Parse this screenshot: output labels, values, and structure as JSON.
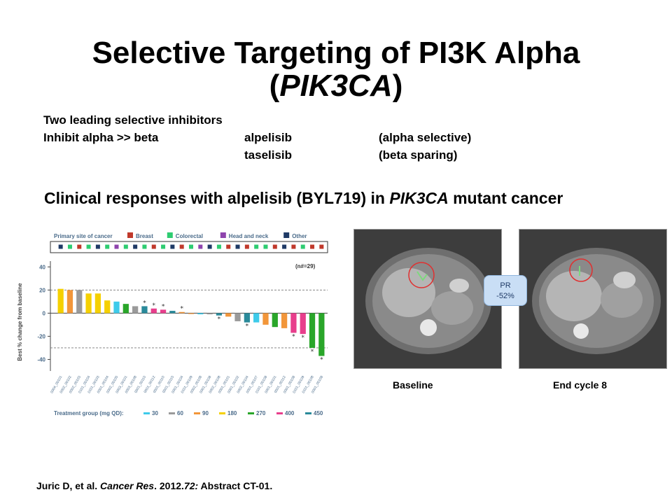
{
  "slide": {
    "title_line1": "Selective Targeting of PI3K Alpha",
    "title_line2_open": "(",
    "title_line2_italic": "PIK3CA",
    "title_line2_close": ")",
    "intro_line": "Two leading selective inhibitors",
    "inhibit_label": "Inhibit alpha >> beta",
    "drugs": [
      {
        "name": "alpelisib",
        "note": "(alpha selective)"
      },
      {
        "name": "taselisib",
        "note": "(beta sparing)"
      }
    ],
    "headline_prefix": "Clinical responses with alpelisib (BYL719) in ",
    "headline_italic": "PIK3CA",
    "headline_suffix": " mutant cancer",
    "ct_captions": {
      "baseline": "Baseline",
      "end": "End cycle 8"
    },
    "pr_badge": {
      "line1": "PR",
      "line2": "-52%"
    },
    "citation": {
      "authors": "Juric D, et al. ",
      "journal": "Cancer Res",
      "rest1": ". 2012.",
      "volume": "72:",
      "rest2": " Abstract CT-01."
    }
  },
  "chart_data": {
    "type": "bar",
    "ylabel": "Best % change from baseline",
    "ylim": [
      -50,
      45
    ],
    "yticks": [
      40,
      20,
      0,
      -20,
      -40
    ],
    "n_label": "(n#=29)",
    "primary_site_legend": {
      "label": "Primary site of cancer",
      "items": [
        {
          "name": "Breast",
          "color": "#c0392b"
        },
        {
          "name": "Colorectal",
          "color": "#2ecc71"
        },
        {
          "name": "Head and neck",
          "color": "#8e44ad"
        },
        {
          "name": "Other",
          "color": "#1f3a66"
        }
      ]
    },
    "treatment_legend": {
      "label": "Treatment group (mg QD):",
      "items": [
        {
          "dose": "30",
          "color": "#3ecbea"
        },
        {
          "dose": "60",
          "color": "#9a9a9a"
        },
        {
          "dose": "90",
          "color": "#f2963a"
        },
        {
          "dose": "180",
          "color": "#f5d000"
        },
        {
          "dose": "270",
          "color": "#2aa62a"
        },
        {
          "dose": "400",
          "color": "#e83e8c"
        },
        {
          "dose": "450",
          "color": "#2a8a9a"
        }
      ]
    },
    "bars": [
      {
        "value": 21,
        "dose": "180",
        "site": "Other",
        "marked": false
      },
      {
        "value": 20,
        "dose": "90",
        "site": "Colorectal",
        "marked": false
      },
      {
        "value": 20,
        "dose": "60",
        "site": "Breast",
        "marked": false
      },
      {
        "value": 17,
        "dose": "180",
        "site": "Colorectal",
        "marked": false
      },
      {
        "value": 17,
        "dose": "180",
        "site": "Other",
        "marked": false
      },
      {
        "value": 11,
        "dose": "180",
        "site": "Colorectal",
        "marked": false
      },
      {
        "value": 10,
        "dose": "30",
        "site": "Head and neck",
        "marked": false
      },
      {
        "value": 8,
        "dose": "270",
        "site": "Colorectal",
        "marked": false
      },
      {
        "value": 6,
        "dose": "60",
        "site": "Other",
        "marked": false
      },
      {
        "value": 6,
        "dose": "450",
        "site": "Colorectal",
        "marked": true
      },
      {
        "value": 4,
        "dose": "400",
        "site": "Breast",
        "marked": true
      },
      {
        "value": 3,
        "dose": "400",
        "site": "Colorectal",
        "marked": true
      },
      {
        "value": 2,
        "dose": "450",
        "site": "Other",
        "marked": false
      },
      {
        "value": 1,
        "dose": "90",
        "site": "Breast",
        "marked": true
      },
      {
        "value": 0,
        "dose": "90",
        "site": "Colorectal",
        "marked": false
      },
      {
        "value": -1,
        "dose": "30",
        "site": "Head and neck",
        "marked": false
      },
      {
        "value": -1,
        "dose": "60",
        "site": "Other",
        "marked": false
      },
      {
        "value": -2,
        "dose": "450",
        "site": "Colorectal",
        "marked": true
      },
      {
        "value": -3,
        "dose": "90",
        "site": "Breast",
        "marked": false
      },
      {
        "value": -7,
        "dose": "60",
        "site": "Other",
        "marked": false
      },
      {
        "value": -8,
        "dose": "450",
        "site": "Breast",
        "marked": true
      },
      {
        "value": -8,
        "dose": "30",
        "site": "Colorectal",
        "marked": false
      },
      {
        "value": -10,
        "dose": "90",
        "site": "Colorectal",
        "marked": false
      },
      {
        "value": -12,
        "dose": "270",
        "site": "Breast",
        "marked": false
      },
      {
        "value": -13,
        "dose": "90",
        "site": "Other",
        "marked": false
      },
      {
        "value": -17,
        "dose": "400",
        "site": "Breast",
        "marked": true
      },
      {
        "value": -18,
        "dose": "400",
        "site": "Colorectal",
        "marked": true
      },
      {
        "value": -30,
        "dose": "270",
        "site": "Breast",
        "marked": true
      },
      {
        "value": -37,
        "dose": "270",
        "site": "Breast",
        "marked": true
      }
    ],
    "reference_lines": [
      20,
      -30
    ],
    "patient_ids": [
      "0004_00101",
      "0002_00102",
      "0002_00103",
      "0101_00104",
      "0101_00103",
      "0001_00104",
      "0002_00105",
      "0003_00101",
      "0003_00108",
      "0001_00110",
      "0001_00112",
      "0001_00110",
      "0001_00115",
      "0001_00104",
      "0101_00109",
      "0002_00108",
      "0001_00108",
      "0002_00108",
      "0001_00101",
      "0001_00102",
      "0002_00104",
      "0001_00107",
      "0101_00108",
      "0001_00101",
      "0001_00112",
      "0001_00108",
      "0101_00109",
      "0101_00108",
      "0001_00108"
    ]
  }
}
